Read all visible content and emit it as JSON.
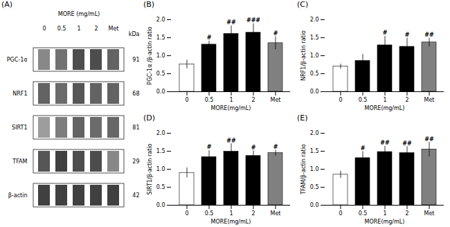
{
  "chart_data": [
    {
      "type": "heatmap",
      "title": "(A)",
      "subtitle": "MORE (mg/mL)",
      "x": [
        "0",
        "0.5",
        "1",
        "2",
        "Met"
      ],
      "y": [
        "PGC-1α",
        "NRF1",
        "SIRT1",
        "TFAM",
        "β-actin"
      ],
      "cells": [
        [
          0.55,
          0.65,
          0.82,
          0.82,
          0.72
        ],
        [
          0.72,
          0.68,
          0.78,
          0.72,
          0.72
        ],
        [
          0.45,
          0.6,
          0.72,
          0.68,
          0.7
        ],
        [
          0.78,
          0.88,
          0.82,
          0.82,
          0.55
        ],
        [
          0.88,
          0.88,
          0.88,
          0.88,
          0.88
        ]
      ],
      "kda_title": "kDa",
      "kda": [
        "91",
        "68",
        "81",
        "29",
        "42"
      ]
    },
    {
      "type": "bar",
      "title": "(B)",
      "categories": [
        "0",
        "0.5",
        "1",
        "2",
        "Met"
      ],
      "values": [
        0.76,
        1.31,
        1.61,
        1.64,
        1.35
      ],
      "errors": [
        0.12,
        0.1,
        0.22,
        0.25,
        0.18
      ],
      "significance": [
        null,
        "#",
        "##",
        "###",
        "#"
      ],
      "colors": [
        "white",
        "black",
        "black",
        "black",
        "gray"
      ],
      "x_label": "MORE(mg/mL)",
      "y_label": "PGC-1α /β-actin ratio",
      "ylim": [
        0.0,
        2.0
      ],
      "yticks": [
        {
          "value": 0.0,
          "label": "0.0"
        },
        0.5,
        {
          "value": 1.0,
          "label": "1.0"
        },
        1.5,
        {
          "value": 2.0,
          "label": "2.0"
        }
      ],
      "grid": false
    },
    {
      "type": "bar",
      "title": "(C)",
      "categories": [
        "0",
        "0.5",
        "1",
        "2",
        "Met"
      ],
      "values": [
        0.7,
        0.86,
        1.29,
        1.25,
        1.37
      ],
      "errors": [
        0.07,
        0.18,
        0.25,
        0.24,
        0.12
      ],
      "significance": [
        null,
        null,
        "#",
        "#",
        "##"
      ],
      "colors": [
        "white",
        "black",
        "black",
        "black",
        "gray"
      ],
      "x_label": "MORE(mg/mL)",
      "y_label": "NRF1/β-actin ratio",
      "ylim": [
        0.0,
        2.0
      ],
      "yticks": [
        {
          "value": 0.0,
          "label": "0.0"
        },
        0.5,
        {
          "value": 1.0,
          "label": "1.0"
        },
        1.5,
        {
          "value": 2.0,
          "label": "2.0"
        }
      ],
      "grid": false
    },
    {
      "type": "bar",
      "title": "(D)",
      "categories": [
        "0",
        "0.5",
        "1",
        "2",
        "Met"
      ],
      "values": [
        0.9,
        1.34,
        1.49,
        1.37,
        1.45
      ],
      "errors": [
        0.14,
        0.18,
        0.22,
        0.14,
        0.08
      ],
      "significance": [
        null,
        "#",
        "##",
        "#",
        "#"
      ],
      "colors": [
        "white",
        "black",
        "black",
        "black",
        "gray"
      ],
      "x_label": "MORE(mg/mL)",
      "y_label": "SIRT1/β-actin ratio",
      "ylim": [
        0.0,
        2.0
      ],
      "yticks": [
        {
          "value": 0.0,
          "label": "0.0"
        },
        0.5,
        {
          "value": 1.0,
          "label": "1.0"
        },
        1.5,
        {
          "value": 2.0,
          "label": "2.0"
        }
      ],
      "grid": false
    },
    {
      "type": "bar",
      "title": "(E)",
      "categories": [
        "0",
        "0.5",
        "1",
        "2",
        "Met"
      ],
      "values": [
        0.85,
        1.31,
        1.48,
        1.45,
        1.55
      ],
      "errors": [
        0.1,
        0.18,
        0.16,
        0.18,
        0.2
      ],
      "significance": [
        null,
        "#",
        "##",
        "##",
        "##"
      ],
      "colors": [
        "white",
        "black",
        "black",
        "black",
        "gray"
      ],
      "x_label": "MORE(mg/mL)",
      "y_label": "TFAM/β-actin ratio",
      "ylim": [
        0.0,
        2.0
      ],
      "yticks": [
        {
          "value": 0.0,
          "label": "0.0"
        },
        0.5,
        {
          "value": 1.0,
          "label": "1.0"
        },
        1.5,
        {
          "value": 2.0,
          "label": "2.0"
        }
      ],
      "grid": false
    }
  ]
}
